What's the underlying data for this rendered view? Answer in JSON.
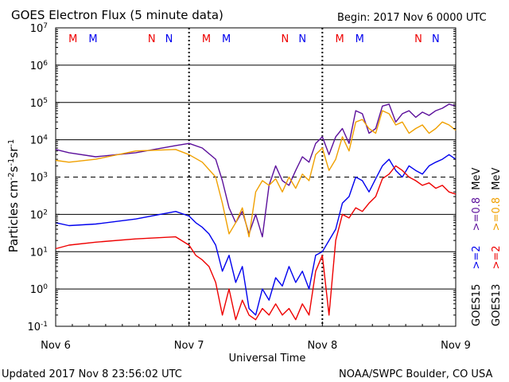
{
  "header": {
    "title": "GOES Electron Flux (5 minute data)",
    "begin": "Begin: 2017 Nov 6 0000 UTC"
  },
  "footer": {
    "updated": "Updated 2017 Nov  8 23:56:02 UTC",
    "credit": "NOAA/SWPC Boulder, CO USA"
  },
  "colors": {
    "goes15_high": "#0000ee",
    "goes15_low": "#5b0f9b",
    "goes13_high": "#ee0000",
    "goes13_low": "#f0a000",
    "M": "#ee0000",
    "M2": "#0000ee",
    "N": "#ee0000",
    "N2": "#0000ee"
  },
  "chart_data": {
    "type": "line",
    "xlabel": "Universal Time",
    "ylabel": "Particles cm-2s-1sr-1",
    "yscale": "log",
    "ylim": [
      0.1,
      10000000
    ],
    "xlim": [
      0,
      3
    ],
    "x_ticks": [
      "Nov 6",
      "Nov 7",
      "Nov 8",
      "Nov 9"
    ],
    "y_ticks": [
      "10^-1",
      "10^0",
      "10^1",
      "10^2",
      "10^3",
      "10^4",
      "10^5",
      "10^6",
      "10^7"
    ],
    "dashed_threshold": 1000,
    "markers": [
      {
        "day": 0,
        "labels": [
          "M",
          "M",
          "N",
          "N"
        ]
      },
      {
        "day": 1,
        "labels": [
          "M",
          "M",
          "N",
          "N"
        ]
      },
      {
        "day": 2,
        "labels": [
          "M",
          "M",
          "N",
          "N"
        ]
      }
    ],
    "legend": {
      "goes15": "GOES15",
      "goes13": "GOES13",
      "high": ">=2",
      "low": ">=0.8",
      "unit": "MeV"
    },
    "series": [
      {
        "name": "GOES15 >=0.8 MeV",
        "color": "#5b0f9b",
        "x": [
          0,
          0.1,
          0.3,
          0.6,
          0.9,
          1.0,
          1.1,
          1.2,
          1.25,
          1.3,
          1.35,
          1.4,
          1.45,
          1.5,
          1.55,
          1.6,
          1.65,
          1.7,
          1.75,
          1.8,
          1.85,
          1.9,
          1.95,
          2.0,
          2.05,
          2.1,
          2.15,
          2.2,
          2.25,
          2.3,
          2.35,
          2.4,
          2.45,
          2.5,
          2.55,
          2.6,
          2.65,
          2.7,
          2.75,
          2.8,
          2.85,
          2.9,
          2.95,
          3.0
        ],
        "values": [
          5500,
          4500,
          3500,
          4500,
          7000,
          8000,
          6000,
          3000,
          800,
          150,
          60,
          120,
          30,
          100,
          25,
          600,
          2000,
          800,
          600,
          1500,
          3500,
          2500,
          8000,
          12000,
          4000,
          12000,
          20000,
          8000,
          60000,
          50000,
          15000,
          20000,
          80000,
          90000,
          30000,
          50000,
          60000,
          40000,
          55000,
          45000,
          60000,
          70000,
          90000,
          80000
        ]
      },
      {
        "name": "GOES13 >=0.8 MeV",
        "color": "#f0a000",
        "x": [
          0,
          0.1,
          0.3,
          0.6,
          0.9,
          1.0,
          1.1,
          1.2,
          1.25,
          1.3,
          1.35,
          1.4,
          1.45,
          1.5,
          1.55,
          1.6,
          1.65,
          1.7,
          1.75,
          1.8,
          1.85,
          1.9,
          1.95,
          2.0,
          2.05,
          2.1,
          2.15,
          2.2,
          2.25,
          2.3,
          2.35,
          2.4,
          2.45,
          2.5,
          2.55,
          2.6,
          2.65,
          2.7,
          2.75,
          2.8,
          2.85,
          2.9,
          2.95,
          3.0
        ],
        "values": [
          2800,
          2500,
          3000,
          5000,
          5500,
          4000,
          2500,
          1000,
          200,
          30,
          60,
          150,
          25,
          400,
          800,
          600,
          900,
          400,
          1000,
          500,
          1200,
          800,
          4000,
          6000,
          1500,
          3000,
          12000,
          5000,
          30000,
          35000,
          20000,
          15000,
          60000,
          50000,
          25000,
          30000,
          15000,
          20000,
          25000,
          15000,
          20000,
          30000,
          25000,
          18000
        ]
      },
      {
        "name": "GOES15 >=2 MeV",
        "color": "#0000ee",
        "x": [
          0,
          0.1,
          0.3,
          0.6,
          0.9,
          1.0,
          1.05,
          1.1,
          1.15,
          1.2,
          1.25,
          1.3,
          1.35,
          1.4,
          1.45,
          1.5,
          1.55,
          1.6,
          1.65,
          1.7,
          1.75,
          1.8,
          1.85,
          1.9,
          1.95,
          2.0,
          2.05,
          2.1,
          2.15,
          2.2,
          2.25,
          2.3,
          2.35,
          2.4,
          2.45,
          2.5,
          2.55,
          2.6,
          2.65,
          2.7,
          2.75,
          2.8,
          2.85,
          2.9,
          2.95,
          3.0
        ],
        "values": [
          60,
          50,
          55,
          75,
          120,
          90,
          60,
          45,
          30,
          15,
          3,
          8,
          1.5,
          4,
          0.3,
          0.2,
          1,
          0.5,
          2,
          1.2,
          4,
          1.5,
          3,
          1,
          8,
          10,
          20,
          40,
          200,
          300,
          1000,
          800,
          400,
          900,
          2000,
          3000,
          1500,
          1000,
          2000,
          1500,
          1200,
          2000,
          2500,
          3000,
          4000,
          3000
        ]
      },
      {
        "name": "GOES13 >=2 MeV",
        "color": "#ee0000",
        "x": [
          0,
          0.1,
          0.3,
          0.6,
          0.9,
          1.0,
          1.05,
          1.1,
          1.15,
          1.2,
          1.25,
          1.3,
          1.35,
          1.4,
          1.45,
          1.5,
          1.55,
          1.6,
          1.65,
          1.7,
          1.75,
          1.8,
          1.85,
          1.9,
          1.95,
          2.0,
          2.05,
          2.1,
          2.15,
          2.2,
          2.25,
          2.3,
          2.35,
          2.4,
          2.45,
          2.5,
          2.55,
          2.6,
          2.65,
          2.7,
          2.75,
          2.8,
          2.85,
          2.9,
          2.95,
          3.0
        ],
        "values": [
          12,
          15,
          18,
          22,
          25,
          15,
          8,
          6,
          4,
          1.5,
          0.2,
          1,
          0.15,
          0.5,
          0.2,
          0.15,
          0.3,
          0.2,
          0.4,
          0.2,
          0.3,
          0.15,
          0.4,
          0.2,
          3,
          8,
          0.2,
          20,
          100,
          80,
          150,
          120,
          200,
          300,
          900,
          1200,
          2000,
          1500,
          1000,
          800,
          600,
          700,
          500,
          600,
          400,
          350
        ]
      }
    ]
  }
}
